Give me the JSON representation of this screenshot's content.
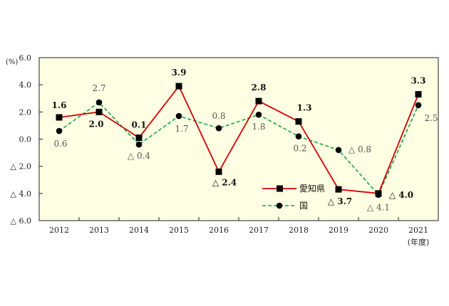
{
  "chart_data": {
    "type": "line",
    "unit_label": "(%)",
    "x_axis_suffix": "(年度)",
    "categories": [
      "2012",
      "2013",
      "2014",
      "2015",
      "2016",
      "2017",
      "2018",
      "2019",
      "2020",
      "2021"
    ],
    "ylim": [
      -6,
      6
    ],
    "y_ticks": [
      {
        "value": 6,
        "label": "6.0"
      },
      {
        "value": 4,
        "label": "4.0"
      },
      {
        "value": 2,
        "label": "2.0"
      },
      {
        "value": 0,
        "label": "0.0"
      },
      {
        "value": -2,
        "label": "△ 2.0"
      },
      {
        "value": -4,
        "label": "△ 4.0"
      },
      {
        "value": -6,
        "label": "△ 6.0"
      }
    ],
    "grid": false,
    "legend_position": "bottom-right",
    "background_color": "#ffffe3",
    "series": [
      {
        "name": "愛知県",
        "color": "#d40000",
        "line_style": "solid",
        "marker": "square",
        "values": [
          1.6,
          2.0,
          0.1,
          3.9,
          -2.4,
          2.8,
          1.3,
          -3.7,
          -4.0,
          3.3
        ],
        "labels": [
          "1.6",
          "2.0",
          "0.1",
          "3.9",
          "△ 2.4",
          "2.8",
          "1.3",
          "△ 3.7",
          "△ 4.0",
          "3.3"
        ]
      },
      {
        "name": "国",
        "color": "#1aa34a",
        "line_style": "dashed",
        "marker": "circle",
        "values": [
          0.6,
          2.7,
          -0.4,
          1.7,
          0.8,
          1.8,
          0.2,
          -0.8,
          -4.1,
          2.5
        ],
        "labels": [
          "0.6",
          "2.7",
          "△ 0.4",
          "1.7",
          "0.8",
          "1.8",
          "0.2",
          "△ 0.8",
          "△ 4.1",
          "2.5"
        ]
      }
    ]
  }
}
